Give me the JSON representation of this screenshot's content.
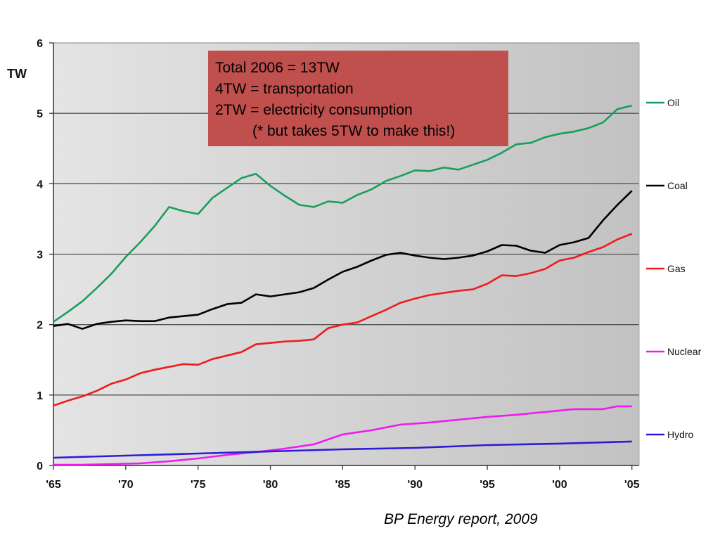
{
  "chart_data": {
    "type": "line",
    "ylabel": "TW",
    "ylim": [
      0,
      6
    ],
    "yticks": [
      "0",
      "1",
      "2",
      "3",
      "4",
      "5",
      "6"
    ],
    "xlim": [
      1965,
      2005.5
    ],
    "xticks": [
      {
        "value": 1965,
        "label": "'65"
      },
      {
        "value": 1970,
        "label": "'70"
      },
      {
        "value": 1975,
        "label": "'75"
      },
      {
        "value": 1980,
        "label": "'80"
      },
      {
        "value": 1985,
        "label": "'85"
      },
      {
        "value": 1990,
        "label": "'90"
      },
      {
        "value": 1995,
        "label": "'95"
      },
      {
        "value": 2000,
        "label": "'00"
      },
      {
        "value": 2005,
        "label": "'05"
      }
    ],
    "grid": true,
    "legend_position": "right",
    "series": [
      {
        "name": "Oil",
        "color": "#1a9e5c",
        "x": [
          1965,
          1966,
          1967,
          1968,
          1969,
          1970,
          1971,
          1972,
          1973,
          1974,
          1975,
          1976,
          1977,
          1978,
          1979,
          1980,
          1981,
          1982,
          1983,
          1984,
          1985,
          1986,
          1987,
          1988,
          1989,
          1990,
          1991,
          1992,
          1993,
          1994,
          1995,
          1996,
          1997,
          1998,
          1999,
          2000,
          2001,
          2002,
          2003,
          2004,
          2005
        ],
        "y": [
          2.04,
          2.18,
          2.33,
          2.52,
          2.72,
          2.96,
          3.17,
          3.4,
          3.67,
          3.61,
          3.57,
          3.8,
          3.94,
          4.08,
          4.14,
          3.97,
          3.83,
          3.7,
          3.67,
          3.75,
          3.73,
          3.84,
          3.92,
          4.04,
          4.11,
          4.19,
          4.18,
          4.23,
          4.2,
          4.27,
          4.34,
          4.44,
          4.56,
          4.58,
          4.66,
          4.71,
          4.74,
          4.79,
          4.87,
          5.06,
          5.11
        ]
      },
      {
        "name": "Coal",
        "color": "#000000",
        "x": [
          1965,
          1966,
          1967,
          1968,
          1969,
          1970,
          1971,
          1972,
          1973,
          1974,
          1975,
          1976,
          1977,
          1978,
          1979,
          1980,
          1981,
          1982,
          1983,
          1984,
          1985,
          1986,
          1987,
          1988,
          1989,
          1990,
          1991,
          1992,
          1993,
          1994,
          1995,
          1996,
          1997,
          1998,
          1999,
          2000,
          2001,
          2002,
          2003,
          2004,
          2005
        ],
        "y": [
          1.98,
          2.01,
          1.94,
          2.01,
          2.04,
          2.06,
          2.05,
          2.05,
          2.1,
          2.12,
          2.14,
          2.22,
          2.29,
          2.31,
          2.43,
          2.4,
          2.43,
          2.46,
          2.52,
          2.64,
          2.75,
          2.82,
          2.91,
          2.99,
          3.02,
          2.98,
          2.95,
          2.93,
          2.95,
          2.98,
          3.04,
          3.13,
          3.12,
          3.05,
          3.02,
          3.13,
          3.17,
          3.23,
          3.48,
          3.7,
          3.9
        ]
      },
      {
        "name": "Gas",
        "color": "#ee1c1c",
        "x": [
          1965,
          1966,
          1967,
          1968,
          1969,
          1970,
          1971,
          1972,
          1973,
          1974,
          1975,
          1976,
          1977,
          1978,
          1979,
          1980,
          1981,
          1982,
          1983,
          1984,
          1985,
          1986,
          1987,
          1988,
          1989,
          1990,
          1991,
          1992,
          1993,
          1994,
          1995,
          1996,
          1997,
          1998,
          1999,
          2000,
          2001,
          2002,
          2003,
          2004,
          2005
        ],
        "y": [
          0.85,
          0.92,
          0.98,
          1.06,
          1.16,
          1.22,
          1.31,
          1.36,
          1.4,
          1.44,
          1.43,
          1.51,
          1.56,
          1.61,
          1.72,
          1.74,
          1.76,
          1.77,
          1.79,
          1.95,
          2.0,
          2.03,
          2.12,
          2.21,
          2.31,
          2.37,
          2.42,
          2.45,
          2.48,
          2.5,
          2.58,
          2.7,
          2.69,
          2.73,
          2.79,
          2.91,
          2.95,
          3.03,
          3.1,
          3.21,
          3.29
        ]
      },
      {
        "name": "Nuclear",
        "color": "#ee1cee",
        "x": [
          1965,
          1967,
          1969,
          1971,
          1973,
          1975,
          1977,
          1979,
          1981,
          1983,
          1985,
          1987,
          1989,
          1991,
          1993,
          1995,
          1997,
          1999,
          2001,
          2003,
          2004,
          2005
        ],
        "y": [
          0.01,
          0.01,
          0.02,
          0.03,
          0.06,
          0.1,
          0.15,
          0.19,
          0.24,
          0.3,
          0.44,
          0.5,
          0.58,
          0.61,
          0.65,
          0.69,
          0.72,
          0.76,
          0.8,
          0.8,
          0.84,
          0.84
        ]
      },
      {
        "name": "Hydro",
        "color": "#2d1cd6",
        "x": [
          1965,
          1970,
          1975,
          1980,
          1985,
          1990,
          1995,
          2000,
          2005
        ],
        "y": [
          0.11,
          0.14,
          0.17,
          0.2,
          0.23,
          0.25,
          0.29,
          0.31,
          0.34
        ]
      }
    ]
  },
  "annotation": {
    "lines": [
      "Total 2006 = 13TW",
      "4TW = transportation",
      "2TW = electricity consumption",
      "(* but takes 5TW to make this!)"
    ],
    "background": "#c0504d"
  },
  "source_note": "BP Energy report, 2009"
}
